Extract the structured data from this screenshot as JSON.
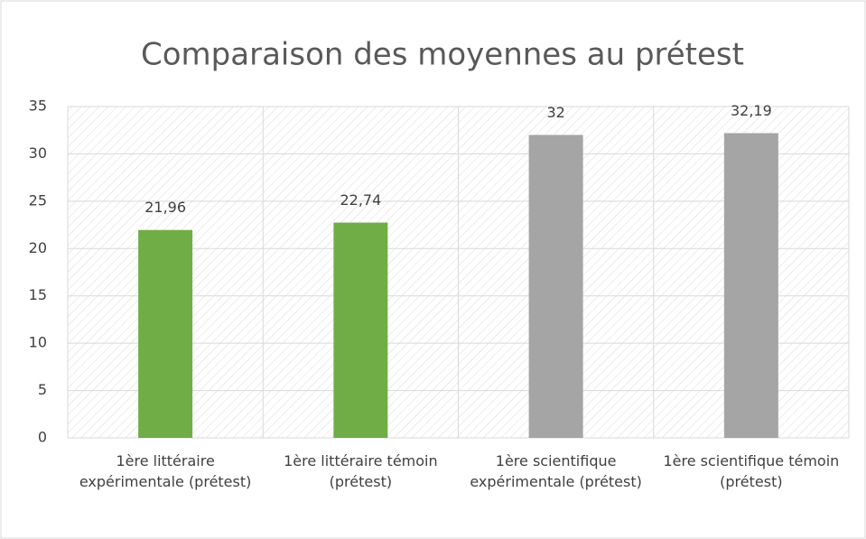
{
  "chart_data": {
    "type": "bar",
    "title": "Comparaison des moyennes au prétest",
    "categories": [
      "1ère littéraire expérimentale (prétest)",
      "1ère littéraire témoin (prétest)",
      "1ère scientifique expérimentale (prétest)",
      "1ère scientifique témoin (prétest)"
    ],
    "values": [
      21.96,
      22.74,
      32,
      32.19
    ],
    "value_labels": [
      "21,96",
      "22,74",
      "32",
      "32,19"
    ],
    "colors": [
      "#70ad47",
      "#70ad47",
      "#a5a5a5",
      "#a5a5a5"
    ],
    "ylim": [
      0,
      35
    ],
    "yticks": [
      0,
      5,
      10,
      15,
      20,
      25,
      30,
      35
    ],
    "grid": true
  }
}
